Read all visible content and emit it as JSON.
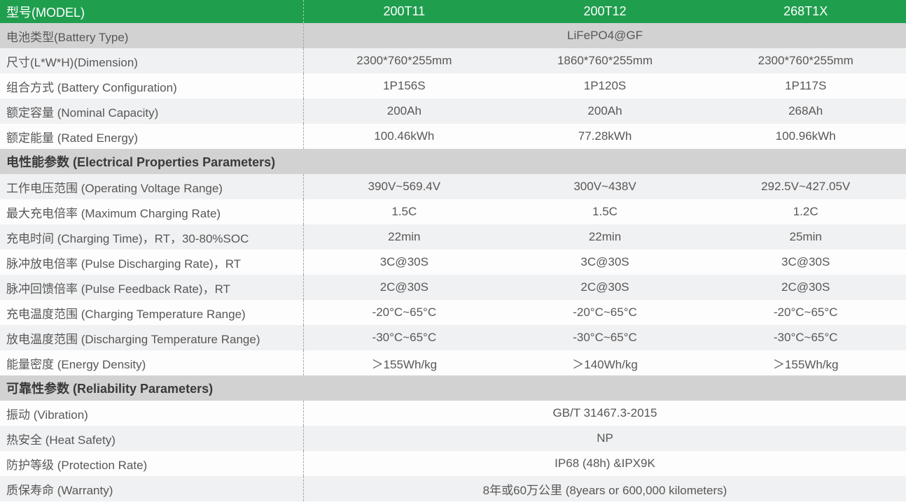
{
  "colors": {
    "green": "#1f9e4e",
    "row_dark_gray": "#d2d2d2",
    "row_light_gray": "#f0f1f2",
    "row_white": "#fdfdfe",
    "label_text": "#595757",
    "section_text": "#3a3a3a",
    "header_text": "#ffffff",
    "dashed_divider": "#a6a6a6"
  },
  "table": {
    "header": {
      "label": "型号(MODEL)",
      "models": [
        "200T11",
        "200T12",
        "268T1X"
      ]
    },
    "rows": [
      {
        "type": "span",
        "shade": "dark",
        "label": "电池类型(Battery Type)",
        "value": "LiFePO4@GF"
      },
      {
        "type": "cols",
        "shade": "light",
        "label": "尺寸(L*W*H)(Dimension)",
        "values": [
          "2300*760*255mm",
          "1860*760*255mm",
          "2300*760*255mm"
        ]
      },
      {
        "type": "cols",
        "shade": "white",
        "label": "组合方式 (Battery Configuration)",
        "values": [
          "1P156S",
          "1P120S",
          "1P117S"
        ]
      },
      {
        "type": "cols",
        "shade": "light",
        "label": "额定容量 (Nominal Capacity)",
        "values": [
          "200Ah",
          "200Ah",
          "268Ah"
        ]
      },
      {
        "type": "cols",
        "shade": "white",
        "label": "额定能量 (Rated Energy)",
        "values": [
          "100.46kWh",
          "77.28kWh",
          "100.96kWh"
        ]
      },
      {
        "type": "section",
        "shade": "dark",
        "label": "电性能参数 (Electrical Properties Parameters)"
      },
      {
        "type": "cols",
        "shade": "light",
        "label": "工作电压范围 (Operating Voltage Range)",
        "values": [
          "390V~569.4V",
          "300V~438V",
          "292.5V~427.05V"
        ]
      },
      {
        "type": "cols",
        "shade": "white",
        "label": "最大充电倍率 (Maximum Charging Rate)",
        "values": [
          "1.5C",
          "1.5C",
          "1.2C"
        ]
      },
      {
        "type": "cols",
        "shade": "light",
        "label": "充电时间 (Charging Time)，RT，30-80%SOC",
        "values": [
          "22min",
          "22min",
          "25min"
        ]
      },
      {
        "type": "cols",
        "shade": "white",
        "label": "脉冲放电倍率 (Pulse Discharging Rate)，RT",
        "values": [
          "3C@30S",
          "3C@30S",
          "3C@30S"
        ]
      },
      {
        "type": "cols",
        "shade": "light",
        "label": "脉冲回馈倍率 (Pulse Feedback Rate)，RT",
        "values": [
          "2C@30S",
          "2C@30S",
          "2C@30S"
        ]
      },
      {
        "type": "cols",
        "shade": "white",
        "label": "充电温度范围 (Charging Temperature Range)",
        "values": [
          "-20°C~65°C",
          "-20°C~65°C",
          "-20°C~65°C"
        ]
      },
      {
        "type": "cols",
        "shade": "light",
        "label": "放电温度范围 (Discharging Temperature Range)",
        "values": [
          "-30°C~65°C",
          "-30°C~65°C",
          "-30°C~65°C"
        ]
      },
      {
        "type": "cols",
        "shade": "white",
        "label": "能量密度 (Energy Density)",
        "values": [
          "＞155Wh/kg",
          "＞140Wh/kg",
          "＞155Wh/kg"
        ]
      },
      {
        "type": "section",
        "shade": "dark",
        "label": "可靠性参数 (Reliability Parameters)"
      },
      {
        "type": "span",
        "shade": "white",
        "label": "振动 (Vibration)",
        "value": "GB/T 31467.3-2015"
      },
      {
        "type": "span",
        "shade": "light",
        "label": "热安全 (Heat Safety)",
        "value": "NP"
      },
      {
        "type": "span",
        "shade": "white",
        "label": "防护等级 (Protection Rate)",
        "value": "IP68 (48h) &IPX9K"
      },
      {
        "type": "span",
        "shade": "light",
        "label": "质保寿命 (Warranty)",
        "value": "8年或60万公里 (8years or 600,000 kilometers)"
      }
    ]
  }
}
